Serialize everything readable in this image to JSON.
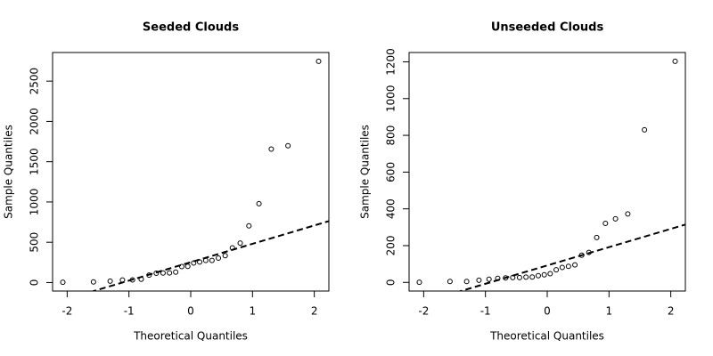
{
  "chart_data": [
    {
      "type": "qq",
      "title": "Seeded Clouds",
      "xlabel": "Theoretical Quantiles",
      "ylabel": "Sample Quantiles",
      "x": [
        -2.07,
        -1.574,
        -1.304,
        -1.105,
        -0.942,
        -0.801,
        -0.674,
        -0.558,
        -0.448,
        -0.344,
        -0.243,
        -0.145,
        -0.048,
        0.048,
        0.145,
        0.243,
        0.344,
        0.448,
        0.558,
        0.674,
        0.801,
        0.942,
        1.105,
        1.304,
        1.574,
        2.07
      ],
      "values": [
        4.1,
        7.7,
        17.5,
        31.4,
        32.7,
        40.6,
        92.4,
        115.3,
        118.3,
        119.0,
        129.6,
        198.6,
        200.7,
        242.5,
        255.0,
        274.7,
        274.7,
        302.8,
        334.1,
        430.0,
        489.1,
        703.4,
        978.0,
        1656.0,
        1697.8,
        2745.6
      ],
      "qqline": {
        "intercept": 252.1,
        "slope": 228.2
      },
      "xlim": [
        -2.236,
        2.236
      ],
      "ylim": [
        -105.6,
        2855.3
      ],
      "xticks": [
        -2,
        -1,
        0,
        1,
        2
      ],
      "yticks": [
        0,
        500,
        1000,
        1500,
        2000,
        2500
      ]
    },
    {
      "type": "qq",
      "title": "Unseeded Clouds",
      "xlabel": "Theoretical Quantiles",
      "ylabel": "Sample Quantiles",
      "x": [
        -2.07,
        -1.574,
        -1.304,
        -1.105,
        -0.942,
        -0.801,
        -0.674,
        -0.558,
        -0.448,
        -0.344,
        -0.243,
        -0.145,
        -0.048,
        0.048,
        0.145,
        0.243,
        0.344,
        0.448,
        0.558,
        0.674,
        0.801,
        0.942,
        1.105,
        1.304,
        1.574,
        2.07
      ],
      "values": [
        1.0,
        4.9,
        4.9,
        11.5,
        17.3,
        21.7,
        24.4,
        26.1,
        26.3,
        28.6,
        29.0,
        36.6,
        41.1,
        47.3,
        68.5,
        81.2,
        87.0,
        95.0,
        147.8,
        163.0,
        244.3,
        321.2,
        345.5,
        372.4,
        830.1,
        1202.6
      ],
      "qqline": {
        "intercept": 92.0,
        "slope": 99.6
      },
      "xlim": [
        -2.236,
        2.236
      ],
      "ylim": [
        -47.1,
        1250.7
      ],
      "xticks": [
        -2,
        -1,
        0,
        1,
        2
      ],
      "yticks": [
        0,
        200,
        400,
        600,
        800,
        1000,
        1200
      ]
    }
  ]
}
